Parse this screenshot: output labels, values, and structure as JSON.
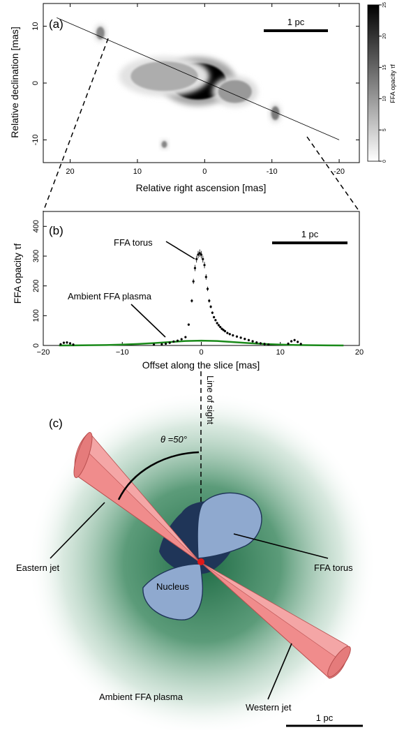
{
  "panel_a": {
    "label": "(a)",
    "xlabel": "Relative right ascension [mas]",
    "ylabel": "Relative declination [mas]",
    "x_ticks": [
      "20",
      "10",
      "0",
      "-10",
      "-20"
    ],
    "y_ticks": [
      "10",
      "0",
      "-10"
    ],
    "scale_bar": "1 pc",
    "colorbar_label": "FFA opacity τf",
    "colorbar_ticks": [
      "0",
      "5",
      "10",
      "15",
      "20",
      "25"
    ]
  },
  "panel_b": {
    "label": "(b)",
    "ylabel": "FFA opacity τf",
    "xlabel": "Offset along the slice [mas]",
    "scale_bar": "1 pc",
    "annotations": {
      "torus": "FFA torus",
      "ambient": "Ambient FFA plasma"
    }
  },
  "panel_c": {
    "label": "(c)",
    "angle": "θ =50°",
    "line_of_sight": "Line of sight",
    "eastern_jet": "Eastern jet",
    "western_jet": "Western jet",
    "nucleus": "Nucleus",
    "torus": "FFA torus",
    "ambient": "Ambient FFA plasma",
    "scale_bar": "1 pc"
  },
  "colors": {
    "profile_fit": "#1a8a1a",
    "plasma_center": "#1f6b45",
    "torus_fill": "#8fa9cf",
    "torus_dark": "#1f3558",
    "jet_fill": "#f08c8c",
    "nucleus": "#e01818"
  },
  "chart_data": [
    {
      "type": "heatmap",
      "panel": "(a)",
      "xlabel": "Relative right ascension [mas]",
      "ylabel": "Relative declination [mas]",
      "xlim": [
        24,
        -23
      ],
      "ylim": [
        -14,
        14
      ],
      "x_ticks": [
        20,
        10,
        0,
        -10,
        -20
      ],
      "y_ticks": [
        10,
        0,
        -10
      ],
      "colorbar": {
        "label": "FFA opacity τf",
        "range": [
          0,
          25
        ],
        "ticks": [
          0,
          5,
          10,
          15,
          20,
          25
        ],
        "colormap": "white-to-black"
      },
      "slice_line": {
        "x": [
          22,
          -20
        ],
        "y": [
          11.5,
          -10
        ]
      },
      "blobs": [
        {
          "x": 1,
          "y": 0.3,
          "rx": 4.2,
          "ry": 3.2,
          "tau": 25
        },
        {
          "x": 6,
          "y": 1.2,
          "rx": 5,
          "ry": 2.6,
          "tau": 8
        },
        {
          "x": -4.5,
          "y": -1.5,
          "rx": 2.5,
          "ry": 2,
          "tau": 10
        },
        {
          "x": 15.5,
          "y": 8.8,
          "rx": 0.6,
          "ry": 1.1,
          "tau": 12
        },
        {
          "x": -10.5,
          "y": -5.3,
          "rx": 0.6,
          "ry": 1.2,
          "tau": 13
        },
        {
          "x": 6,
          "y": -10.8,
          "rx": 0.4,
          "ry": 0.6,
          "tau": 12
        }
      ]
    },
    {
      "type": "scatter",
      "panel": "(b)",
      "xlabel": "Offset along the slice [mas]",
      "ylabel": "FFA opacity τf",
      "xlim": [
        -20,
        20
      ],
      "ylim": [
        0,
        450
      ],
      "x_ticks": [
        -20,
        -10,
        0,
        10,
        20
      ],
      "y_ticks": [
        0,
        100,
        200,
        300,
        400
      ],
      "series": [
        {
          "x": [
            -17.8,
            -17.4,
            -17,
            -16.6,
            -16.2,
            -6,
            -5,
            -4.5,
            -4,
            -3.5,
            -3,
            -2.5,
            -2,
            -1.6,
            -1.2,
            -1,
            -0.8,
            -0.6,
            -0.4,
            -0.2,
            0,
            0.2,
            0.4,
            0.6,
            0.8,
            1,
            1.2,
            1.4,
            1.6,
            1.8,
            2,
            2.2,
            2.4,
            2.6,
            2.8,
            3,
            3.3,
            3.6,
            4,
            4.5,
            5,
            5.5,
            6,
            6.5,
            7,
            7.5,
            8,
            8.5,
            11,
            11.4,
            11.8,
            12.2,
            12.6
          ],
          "y": [
            4,
            9,
            10,
            7,
            3,
            3,
            4,
            6,
            9,
            13,
            16,
            21,
            28,
            70,
            150,
            215,
            260,
            290,
            305,
            310,
            305,
            290,
            270,
            230,
            190,
            150,
            130,
            110,
            95,
            85,
            75,
            68,
            62,
            56,
            52,
            48,
            42,
            38,
            34,
            30,
            26,
            22,
            18,
            14,
            10,
            7,
            5,
            3,
            6,
            14,
            18,
            12,
            5
          ]
        },
        {
          "x": [
            -18,
            -16,
            -14,
            -12,
            -10,
            -8,
            -6,
            -4,
            -2,
            0,
            2,
            4,
            6,
            8,
            10,
            12,
            14,
            16,
            18
          ],
          "y": [
            0,
            0.3,
            0.8,
            1.6,
            3,
            5,
            8,
            11.5,
            15,
            16,
            15,
            11.5,
            8,
            5,
            3,
            1.6,
            0.8,
            0.3,
            0
          ]
        }
      ]
    }
  ]
}
